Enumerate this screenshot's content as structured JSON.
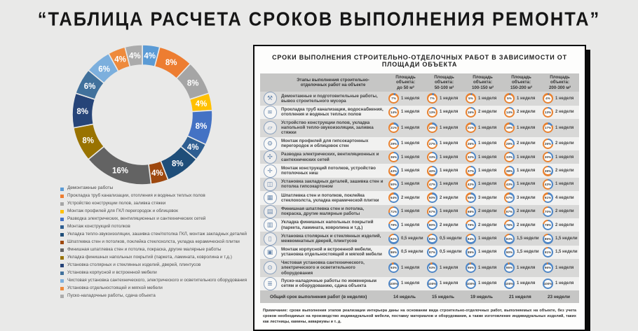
{
  "page": {
    "title": "“ТАБЛИЦА РАСЧЕТА СРОКОВ ВЫПОЛНЕНИЯ РЕМОНТА”"
  },
  "chart_data": {
    "type": "pie",
    "donut": true,
    "title": "",
    "legend_position": "bottom-left",
    "labels": [
      "Демонтажные работы",
      "Прокладка труб канализации, отопления и водяных теплых полов",
      "Устройство конструкции полов, заливка стяжки",
      "Монтаж профилей для ГКЛ перегородок и облицовок",
      "Разводка электрических, вентиляционных и сантехнических сетей",
      "Монтаж конструкций потолков",
      "Укладка тепло-звукоизоляции, зашивка стен/потолка ГКЛ, монтаж закладных деталей",
      "Шпатлевка стен и потолков, поклейка стеклохолста, укладка керамической плитки",
      "Финишная шпатлевка стен и потолка, покраска, другие малярные работы",
      "Укладка финишных напольных покрытий (паркета, ламината, ковролина и т.д.)",
      "Установка столярных и стеклянных изделий, дверей, плинтусов",
      "Установка корпусной и встроенной мебели",
      "Чистовая установка сантехнического, электрического и осветительного оборудования",
      "Установка отдельностоящей и мягкой мебели",
      "Пуско-наладочные работы, сдача объекта"
    ],
    "values": [
      4,
      8,
      8,
      4,
      8,
      4,
      8,
      4,
      16,
      8,
      8,
      6,
      6,
      4,
      4
    ],
    "display_labels": [
      "4%",
      "8%",
      "8%",
      "4%",
      "8%",
      "4%",
      "8%",
      "4%",
      "16%",
      "8%",
      "8%",
      "6%",
      "6%",
      "4%",
      "4%"
    ],
    "colors": [
      "#5B9BD5",
      "#ED7D31",
      "#A5A5A5",
      "#FFC000",
      "#4472C4",
      "#2E5E91",
      "#1F4E79",
      "#9E480E",
      "#636363",
      "#997300",
      "#264478",
      "#41719C",
      "#7CAFDD",
      "#EE8A3C",
      "#ABABAB"
    ]
  },
  "colors": {
    "ring_progress": "#4E86C6",
    "ring_rest": "#E8812F"
  },
  "table": {
    "title": "СРОКИ ВЫПОЛНЕНИЯ СТРОИТЕЛЬНО-ОТДЕЛОЧНЫХ РАБОТ В ЗАВИСИМОСТИ ОТ ПЛОЩАДИ ОБЪЕКТА",
    "stage_header": "Этапы выполнения строительно-отделочных работ на объекте",
    "col_header_prefix": "Площадь объекта:",
    "columns": [
      "до 50 м²",
      "50-100 м²",
      "100-150 м²",
      "150-200 м²",
      "200-300 м²"
    ],
    "rows": [
      {
        "icon": "hammer-icon",
        "label": "Демонтажные и подготовительные работы, вывоз строительного мусора",
        "cells": [
          {
            "percent": 7,
            "weeks": "1 неделя"
          },
          {
            "percent": 7,
            "weeks": "1 неделя"
          },
          {
            "percent": 5,
            "weeks": "1 неделя"
          },
          {
            "percent": 5,
            "weeks": "1 неделя"
          },
          {
            "percent": 4,
            "weeks": "1 неделя"
          }
        ]
      },
      {
        "icon": "pipes-icon",
        "label": "Прокладка труб канализации, водоснабжения, отопления и водяных теплых полов",
        "cells": [
          {
            "percent": 14,
            "weeks": "1 неделя"
          },
          {
            "percent": 13,
            "weeks": "1 неделя"
          },
          {
            "percent": 16,
            "weeks": "2 недели"
          },
          {
            "percent": 14,
            "weeks": "2 недели"
          },
          {
            "percent": 13,
            "weeks": "2 недели"
          }
        ]
      },
      {
        "icon": "trowel-icon",
        "label": "Устройство конструкции полов, укладка напольной тепло-звукоизоляции, заливка стяжки",
        "cells": [
          {
            "percent": 21,
            "weeks": "1 неделя"
          },
          {
            "percent": 20,
            "weeks": "1 неделя"
          },
          {
            "percent": 21,
            "weeks": "1 неделя"
          },
          {
            "percent": 19,
            "weeks": "1 неделя"
          },
          {
            "percent": 17,
            "weeks": "1 неделя"
          }
        ]
      },
      {
        "icon": "drill-icon",
        "label": "Монтаж профилей для гипсокартонных перегородок и облицовок стен",
        "cells": [
          {
            "percent": 29,
            "weeks": "1 неделя"
          },
          {
            "percent": 27,
            "weeks": "1 неделя"
          },
          {
            "percent": 26,
            "weeks": "1 неделя"
          },
          {
            "percent": 29,
            "weeks": "2 недели"
          },
          {
            "percent": 26,
            "weeks": "2 недели"
          }
        ]
      },
      {
        "icon": "fan-icon",
        "label": "Разводка электрических, вентиляционных и сантехнических сетей",
        "cells": [
          {
            "percent": 36,
            "weeks": "1 неделя"
          },
          {
            "percent": 33,
            "weeks": "1 неделя"
          },
          {
            "percent": 32,
            "weeks": "1 неделя"
          },
          {
            "percent": 33,
            "weeks": "1 неделя"
          },
          {
            "percent": 30,
            "weeks": "1 неделя"
          }
        ]
      },
      {
        "icon": "screwdriver-icon",
        "label": "Монтаж конструкций потолков, устройство потолочных ниш",
        "cells": [
          {
            "percent": 43,
            "weeks": "1 неделя"
          },
          {
            "percent": 40,
            "weeks": "1 неделя"
          },
          {
            "percent": 37,
            "weeks": "1 неделя"
          },
          {
            "percent": 38,
            "weeks": "1 неделя"
          },
          {
            "percent": 39,
            "weeks": "2 недели"
          }
        ]
      },
      {
        "icon": "panels-icon",
        "label": "Установка закладных деталей, зашивка стен и потолка гипсокартоном",
        "cells": [
          {
            "percent": 50,
            "weeks": "1 неделя"
          },
          {
            "percent": 47,
            "weeks": "1 неделя"
          },
          {
            "percent": 42,
            "weeks": "1 неделя"
          },
          {
            "percent": 43,
            "weeks": "1 неделя"
          },
          {
            "percent": 43,
            "weeks": "1 неделя"
          }
        ]
      },
      {
        "icon": "tiles-icon",
        "label": "Шпатлевка стен и потолков, поклейка стеклохолста, укладка керамической плитки",
        "cells": [
          {
            "percent": 64,
            "weeks": "2 недели"
          },
          {
            "percent": 60,
            "weeks": "2 недели"
          },
          {
            "percent": 58,
            "weeks": "3 недели"
          },
          {
            "percent": 57,
            "weeks": "3 недели"
          },
          {
            "percent": 61,
            "weeks": "4 недели"
          }
        ]
      },
      {
        "icon": "paint-roller-icon",
        "label": "Финишная шпатлевка стен и потолка, покраска, другие малярные работы",
        "cells": [
          {
            "percent": 71,
            "weeks": "1 неделя"
          },
          {
            "percent": 67,
            "weeks": "1 неделя"
          },
          {
            "percent": 68,
            "weeks": "2 недели"
          },
          {
            "percent": 67,
            "weeks": "2 недели"
          },
          {
            "percent": 70,
            "weeks": "2 недели"
          }
        ]
      },
      {
        "icon": "flooring-icon",
        "label": "Укладка финишных напольных покрытий (паркета, ламината, ковролина и т.д.)",
        "cells": [
          {
            "percent": 79,
            "weeks": "1 неделя"
          },
          {
            "percent": 80,
            "weeks": "2 недели"
          },
          {
            "percent": 79,
            "weeks": "2 недели"
          },
          {
            "percent": 76,
            "weeks": "2 недели"
          },
          {
            "percent": 78,
            "weeks": "2 недели"
          }
        ]
      },
      {
        "icon": "door-icon",
        "label": "Установка столярных и стеклянных изделий, межкомнатных дверей, плинтусов",
        "cells": [
          {
            "percent": 82,
            "weeks": "0,5 недели"
          },
          {
            "percent": 83,
            "weeks": "0,5 недели"
          },
          {
            "percent": 84,
            "weeks": "1 неделя"
          },
          {
            "percent": 83,
            "weeks": "1,5 недели"
          },
          {
            "percent": 85,
            "weeks": "1,5 недели"
          }
        ]
      },
      {
        "icon": "furniture-icon",
        "label": "Монтаж корпусной и встроенной мебели, установка отдельностоящей и мягкой мебели",
        "cells": [
          {
            "percent": 86,
            "weeks": "0,5 недели"
          },
          {
            "percent": 87,
            "weeks": "0,5 недели"
          },
          {
            "percent": 89,
            "weeks": "1 неделя"
          },
          {
            "percent": 90,
            "weeks": "1,5 недели"
          },
          {
            "percent": 91,
            "weeks": "1,5 недели"
          }
        ]
      },
      {
        "icon": "lightbulb-icon",
        "label": "Чистовая установка сантехнического, электрического и осветительного оборудования",
        "cells": [
          {
            "percent": 93,
            "weeks": "1 неделя"
          },
          {
            "percent": 93,
            "weeks": "1 неделя"
          },
          {
            "percent": 95,
            "weeks": "1 неделя"
          },
          {
            "percent": 95,
            "weeks": "1 неделя"
          },
          {
            "percent": 96,
            "weeks": "1 неделя"
          }
        ]
      },
      {
        "icon": "clipboard-icon",
        "label": "Пуско-наладочные работы по инженерным сетям и оборудованию, сдача объекта",
        "cells": [
          {
            "percent": 100,
            "weeks": "1 неделя"
          },
          {
            "percent": 100,
            "weeks": "1 неделя"
          },
          {
            "percent": 100,
            "weeks": "1 неделя"
          },
          {
            "percent": 100,
            "weeks": "1 неделя"
          },
          {
            "percent": 100,
            "weeks": "1 неделя"
          }
        ]
      }
    ],
    "total_row": {
      "label": "Общий срок выполнения работ (в неделях)",
      "values": [
        "14 недель",
        "15 недель",
        "19 недель",
        "21 неделя",
        "23 недели"
      ]
    },
    "note": "Примечание: сроки выполнения этапов реализации интерьера даны на основании вида строительно-отделочных работ, выполняемых на объекте, без учета сроков необходимых на производство индивидуальной мебели, поставку материалов и оборудования, а также изготовление индивидуальных изделий, таких как лестницы, камины, аквариумы и т. д."
  }
}
